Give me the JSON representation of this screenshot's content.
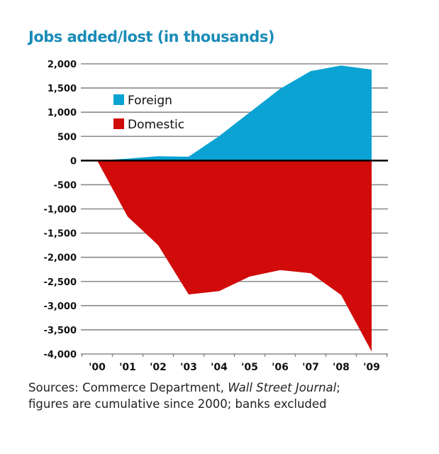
{
  "chart_data": {
    "type": "area",
    "title": "Jobs added/lost (in thousands)",
    "xlabel": "",
    "ylabel": "",
    "categories": [
      "'00",
      "'01",
      "'02",
      "'03",
      "'04",
      "'05",
      "'06",
      "'07",
      "'08",
      "'09"
    ],
    "series": [
      {
        "name": "Foreign",
        "color": "#0aa3d3",
        "values": [
          0,
          40,
          90,
          80,
          505,
          995,
          1485,
          1850,
          1965,
          1880
        ]
      },
      {
        "name": "Domestic",
        "color": "#d10a0a",
        "values": [
          0,
          -1160,
          -1750,
          -2770,
          -2700,
          -2400,
          -2265,
          -2330,
          -2780,
          -3950
        ]
      }
    ],
    "ylim": [
      -4000,
      2000
    ],
    "yticks": [
      2000,
      1500,
      1000,
      500,
      0,
      -500,
      -1000,
      -1500,
      -2000,
      -2500,
      -3000,
      -3500,
      -4000
    ],
    "ytick_labels": [
      "2,000",
      "1,500",
      "1,000",
      "500",
      "0",
      "-500",
      "-1,000",
      "-1,500",
      "-2,000",
      "-2,500",
      "-3,000",
      "-3,500",
      "-4,000"
    ],
    "grid": true,
    "legend_position": "top-left"
  },
  "source": {
    "line1_prefix": "Sources: Commerce Department, ",
    "line1_italic": "Wall Street Journal",
    "line1_suffix": ";",
    "line2": "figures are cumulative since 2000; banks excluded"
  }
}
